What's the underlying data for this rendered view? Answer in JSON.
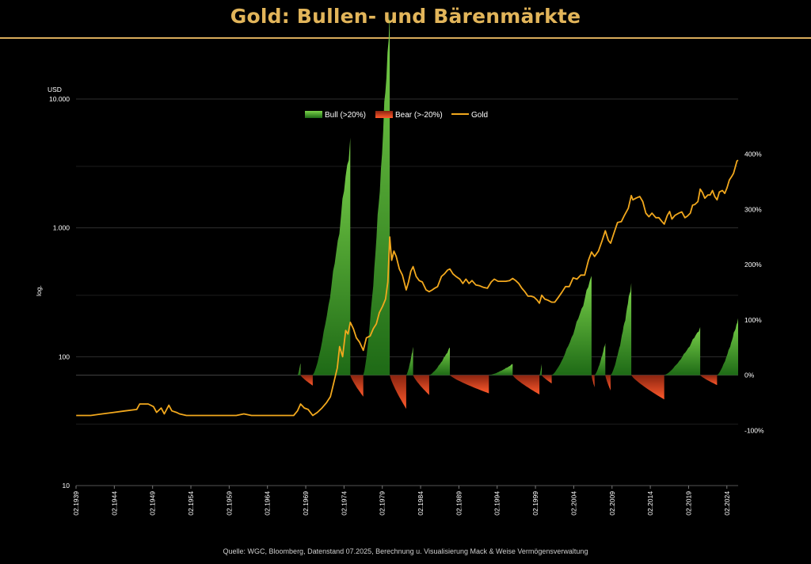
{
  "title": "Gold: Bullen- und Bärenmärkte",
  "source": "Quelle: WGC, Bloomberg, Datenstand 07.2025, Berechnung u. Visualisierung Mack & Weise Vermögensverwaltung",
  "colors": {
    "gold_line": "#f2a81d",
    "bull_top": "#7bd34a",
    "bull_bottom": "#1e6a16",
    "bear_top": "#8a2410",
    "bear_bottom": "#ff5a2c",
    "title": "#e2b55a",
    "grid": "#2e2e2e"
  },
  "chart_data": {
    "type": "line",
    "title": "Gold: Bullen- und Bärenmärkte",
    "y_left": {
      "unit_label": "USD",
      "label": "log.",
      "scale": "log",
      "range": [
        10,
        10000
      ],
      "ticks": [
        {
          "value": 10,
          "label": "10"
        },
        {
          "value": 100,
          "label": "100"
        },
        {
          "value": 1000,
          "label": "1.000"
        },
        {
          "value": 10000,
          "label": "10.000"
        }
      ]
    },
    "y_right": {
      "range_percent": [
        -200,
        500
      ],
      "ticks": [
        {
          "value": -100,
          "label": "-100%"
        },
        {
          "value": 0,
          "label": "0%"
        },
        {
          "value": 100,
          "label": "100%"
        },
        {
          "value": 200,
          "label": "200%"
        },
        {
          "value": 300,
          "label": "300%"
        },
        {
          "value": 400,
          "label": "400%"
        }
      ]
    },
    "x_axis": {
      "range": [
        1939.08,
        2025.55
      ],
      "ticks": [
        {
          "value": 1939.08,
          "label": "02.1939"
        },
        {
          "value": 1944.08,
          "label": "02.1944"
        },
        {
          "value": 1949.08,
          "label": "02.1949"
        },
        {
          "value": 1954.08,
          "label": "02.1954"
        },
        {
          "value": 1959.08,
          "label": "02.1959"
        },
        {
          "value": 1964.08,
          "label": "02.1964"
        },
        {
          "value": 1969.08,
          "label": "02.1969"
        },
        {
          "value": 1974.08,
          "label": "02.1974"
        },
        {
          "value": 1979.08,
          "label": "02.1979"
        },
        {
          "value": 1984.08,
          "label": "02.1984"
        },
        {
          "value": 1989.08,
          "label": "02.1989"
        },
        {
          "value": 1994.08,
          "label": "02.1994"
        },
        {
          "value": 1999.08,
          "label": "02.1999"
        },
        {
          "value": 2004.08,
          "label": "02.2004"
        },
        {
          "value": 2009.08,
          "label": "02.2009"
        },
        {
          "value": 2014.08,
          "label": "02.2014"
        },
        {
          "value": 2019.08,
          "label": "02.2019"
        },
        {
          "value": 2024.08,
          "label": "02.2024"
        }
      ]
    },
    "legend": {
      "position": "top-center",
      "items": [
        {
          "label": "Bull (>20%)",
          "kind": "bull"
        },
        {
          "label": "Bear (>-20%)",
          "kind": "bear"
        },
        {
          "label": "Gold",
          "kind": "line"
        }
      ]
    },
    "gold_series": {
      "name": "Gold",
      "points": [
        [
          1939.1,
          35
        ],
        [
          1941,
          35
        ],
        [
          1942.5,
          36
        ],
        [
          1944,
          37
        ],
        [
          1945.5,
          38
        ],
        [
          1947,
          39
        ],
        [
          1947.4,
          43
        ],
        [
          1948.5,
          43
        ],
        [
          1949.2,
          41
        ],
        [
          1949.6,
          37
        ],
        [
          1950.2,
          40
        ],
        [
          1950.6,
          36
        ],
        [
          1951.2,
          42
        ],
        [
          1951.6,
          38
        ],
        [
          1952.2,
          37
        ],
        [
          1952.6,
          36
        ],
        [
          1953.5,
          35
        ],
        [
          1956,
          35
        ],
        [
          1960,
          35
        ],
        [
          1961,
          36
        ],
        [
          1962,
          35
        ],
        [
          1966,
          35
        ],
        [
          1967.5,
          35
        ],
        [
          1968.0,
          38
        ],
        [
          1968.4,
          43
        ],
        [
          1968.9,
          40
        ],
        [
          1969.4,
          39
        ],
        [
          1970.0,
          35
        ],
        [
          1970.6,
          37
        ],
        [
          1971.2,
          40
        ],
        [
          1971.8,
          44
        ],
        [
          1972.3,
          49
        ],
        [
          1972.8,
          65
        ],
        [
          1973.2,
          82
        ],
        [
          1973.5,
          120
        ],
        [
          1973.9,
          100
        ],
        [
          1974.3,
          160
        ],
        [
          1974.6,
          150
        ],
        [
          1974.9,
          185
        ],
        [
          1975.3,
          165
        ],
        [
          1975.7,
          140
        ],
        [
          1976.1,
          130
        ],
        [
          1976.6,
          112
        ],
        [
          1977.0,
          140
        ],
        [
          1977.5,
          145
        ],
        [
          1977.9,
          165
        ],
        [
          1978.3,
          180
        ],
        [
          1978.7,
          220
        ],
        [
          1979.1,
          245
        ],
        [
          1979.5,
          280
        ],
        [
          1979.8,
          380
        ],
        [
          1980.05,
          850
        ],
        [
          1980.3,
          560
        ],
        [
          1980.6,
          660
        ],
        [
          1980.9,
          600
        ],
        [
          1981.3,
          480
        ],
        [
          1981.7,
          430
        ],
        [
          1982.2,
          330
        ],
        [
          1982.5,
          380
        ],
        [
          1982.8,
          460
        ],
        [
          1983.1,
          500
        ],
        [
          1983.5,
          420
        ],
        [
          1983.9,
          390
        ],
        [
          1984.3,
          380
        ],
        [
          1984.8,
          330
        ],
        [
          1985.2,
          320
        ],
        [
          1985.6,
          330
        ],
        [
          1985.9,
          340
        ],
        [
          1986.3,
          350
        ],
        [
          1986.8,
          420
        ],
        [
          1987.2,
          440
        ],
        [
          1987.6,
          470
        ],
        [
          1987.9,
          480
        ],
        [
          1988.3,
          440
        ],
        [
          1988.7,
          420
        ],
        [
          1989.2,
          400
        ],
        [
          1989.6,
          370
        ],
        [
          1990.0,
          400
        ],
        [
          1990.4,
          370
        ],
        [
          1990.8,
          390
        ],
        [
          1991.3,
          360
        ],
        [
          1991.8,
          355
        ],
        [
          1992.3,
          345
        ],
        [
          1992.8,
          340
        ],
        [
          1993.3,
          380
        ],
        [
          1993.7,
          400
        ],
        [
          1994.2,
          385
        ],
        [
          1994.7,
          385
        ],
        [
          1995.2,
          385
        ],
        [
          1995.7,
          390
        ],
        [
          1996.1,
          405
        ],
        [
          1996.5,
          390
        ],
        [
          1996.9,
          370
        ],
        [
          1997.3,
          340
        ],
        [
          1997.7,
          320
        ],
        [
          1998.1,
          295
        ],
        [
          1998.5,
          295
        ],
        [
          1998.9,
          290
        ],
        [
          1999.3,
          275
        ],
        [
          1999.6,
          260
        ],
        [
          1999.9,
          300
        ],
        [
          2000.3,
          280
        ],
        [
          2000.7,
          275
        ],
        [
          2001.2,
          265
        ],
        [
          2001.6,
          265
        ],
        [
          2002.0,
          285
        ],
        [
          2002.5,
          315
        ],
        [
          2003.0,
          350
        ],
        [
          2003.5,
          350
        ],
        [
          2004.0,
          410
        ],
        [
          2004.5,
          400
        ],
        [
          2005.0,
          430
        ],
        [
          2005.5,
          430
        ],
        [
          2006.0,
          560
        ],
        [
          2006.4,
          650
        ],
        [
          2006.8,
          600
        ],
        [
          2007.3,
          660
        ],
        [
          2007.8,
          800
        ],
        [
          2008.2,
          950
        ],
        [
          2008.6,
          800
        ],
        [
          2008.9,
          760
        ],
        [
          2009.3,
          900
        ],
        [
          2009.8,
          1100
        ],
        [
          2010.3,
          1120
        ],
        [
          2010.7,
          1250
        ],
        [
          2011.2,
          1420
        ],
        [
          2011.6,
          1780
        ],
        [
          2011.8,
          1650
        ],
        [
          2012.2,
          1700
        ],
        [
          2012.7,
          1750
        ],
        [
          2013.1,
          1600
        ],
        [
          2013.5,
          1300
        ],
        [
          2013.9,
          1220
        ],
        [
          2014.3,
          1300
        ],
        [
          2014.8,
          1200
        ],
        [
          2015.2,
          1200
        ],
        [
          2015.6,
          1120
        ],
        [
          2015.9,
          1070
        ],
        [
          2016.3,
          1250
        ],
        [
          2016.6,
          1340
        ],
        [
          2016.9,
          1170
        ],
        [
          2017.3,
          1250
        ],
        [
          2017.8,
          1300
        ],
        [
          2018.2,
          1330
        ],
        [
          2018.6,
          1200
        ],
        [
          2018.9,
          1230
        ],
        [
          2019.3,
          1300
        ],
        [
          2019.6,
          1500
        ],
        [
          2019.9,
          1520
        ],
        [
          2020.3,
          1600
        ],
        [
          2020.6,
          2000
        ],
        [
          2020.9,
          1880
        ],
        [
          2021.2,
          1700
        ],
        [
          2021.6,
          1800
        ],
        [
          2021.9,
          1800
        ],
        [
          2022.2,
          1950
        ],
        [
          2022.5,
          1750
        ],
        [
          2022.8,
          1650
        ],
        [
          2023.1,
          1900
        ],
        [
          2023.5,
          1950
        ],
        [
          2023.8,
          1850
        ],
        [
          2024.1,
          2050
        ],
        [
          2024.4,
          2350
        ],
        [
          2024.7,
          2500
        ],
        [
          2024.95,
          2650
        ],
        [
          2025.2,
          3000
        ],
        [
          2025.4,
          3300
        ],
        [
          2025.55,
          3350
        ]
      ]
    },
    "bull_markets": [
      {
        "start": 1968.0,
        "end": 1968.4,
        "gain_percent": 22
      },
      {
        "start": 1970.0,
        "end": 1974.9,
        "gain_percent": 430
      },
      {
        "start": 1976.6,
        "end": 1980.05,
        "gain_percent": 660
      },
      {
        "start": 1982.2,
        "end": 1983.1,
        "gain_percent": 51
      },
      {
        "start": 1985.2,
        "end": 1987.9,
        "gain_percent": 50
      },
      {
        "start": 1993.0,
        "end": 1996.1,
        "gain_percent": 20
      },
      {
        "start": 1999.6,
        "end": 1999.9,
        "gain_percent": 20
      },
      {
        "start": 2001.2,
        "end": 2006.4,
        "gain_percent": 180
      },
      {
        "start": 2006.8,
        "end": 2008.2,
        "gain_percent": 58
      },
      {
        "start": 2008.9,
        "end": 2011.6,
        "gain_percent": 167
      },
      {
        "start": 2015.9,
        "end": 2020.6,
        "gain_percent": 87
      },
      {
        "start": 2022.8,
        "end": 2025.55,
        "gain_percent": 103
      }
    ],
    "bear_markets": [
      {
        "start": 1968.4,
        "end": 1970.0,
        "loss_percent": -19
      },
      {
        "start": 1974.9,
        "end": 1976.6,
        "loss_percent": -39
      },
      {
        "start": 1980.05,
        "end": 1982.2,
        "loss_percent": -61
      },
      {
        "start": 1983.1,
        "end": 1985.2,
        "loss_percent": -36
      },
      {
        "start": 1987.9,
        "end": 1993.0,
        "loss_percent": -33
      },
      {
        "start": 1996.1,
        "end": 1999.6,
        "loss_percent": -35
      },
      {
        "start": 1999.9,
        "end": 2001.2,
        "loss_percent": -15
      },
      {
        "start": 2006.4,
        "end": 2006.8,
        "loss_percent": -22
      },
      {
        "start": 2008.2,
        "end": 2008.9,
        "loss_percent": -28
      },
      {
        "start": 2011.6,
        "end": 2015.9,
        "loss_percent": -44
      },
      {
        "start": 2020.6,
        "end": 2022.8,
        "loss_percent": -18
      }
    ]
  }
}
